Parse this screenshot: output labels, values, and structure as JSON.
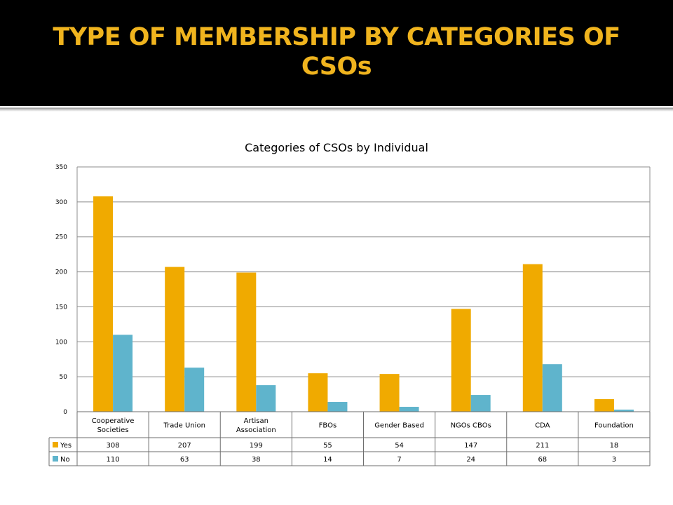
{
  "slide": {
    "title": "TYPE OF MEMBERSHIP BY CATEGORIES OF CSOs"
  },
  "colors": {
    "banner_bg": "#000000",
    "title_color": "#f0b41e",
    "yes": "#f0aa00",
    "no": "#5fb4cc",
    "grid": "#8c8c8c"
  },
  "chart_data": {
    "type": "bar",
    "title": "Categories of CSOs by Individual",
    "categories": [
      [
        "Cooperative",
        "Societies"
      ],
      [
        "Trade Union"
      ],
      [
        "Artisan",
        "Association"
      ],
      [
        "FBOs"
      ],
      [
        "Gender Based"
      ],
      [
        "NGOs CBOs"
      ],
      [
        "CDA"
      ],
      [
        "Foundation"
      ]
    ],
    "series": [
      {
        "name": "Yes",
        "values": [
          308,
          207,
          199,
          55,
          54,
          147,
          211,
          18
        ],
        "color": "#f0aa00"
      },
      {
        "name": "No",
        "values": [
          110,
          63,
          38,
          14,
          7,
          24,
          68,
          3
        ],
        "color": "#5fb4cc"
      }
    ],
    "ylim": [
      0,
      350
    ],
    "yticks": [
      0,
      50,
      100,
      150,
      200,
      250,
      300,
      350
    ],
    "grid": true,
    "legend": "data-table",
    "xlabel": "",
    "ylabel": ""
  }
}
